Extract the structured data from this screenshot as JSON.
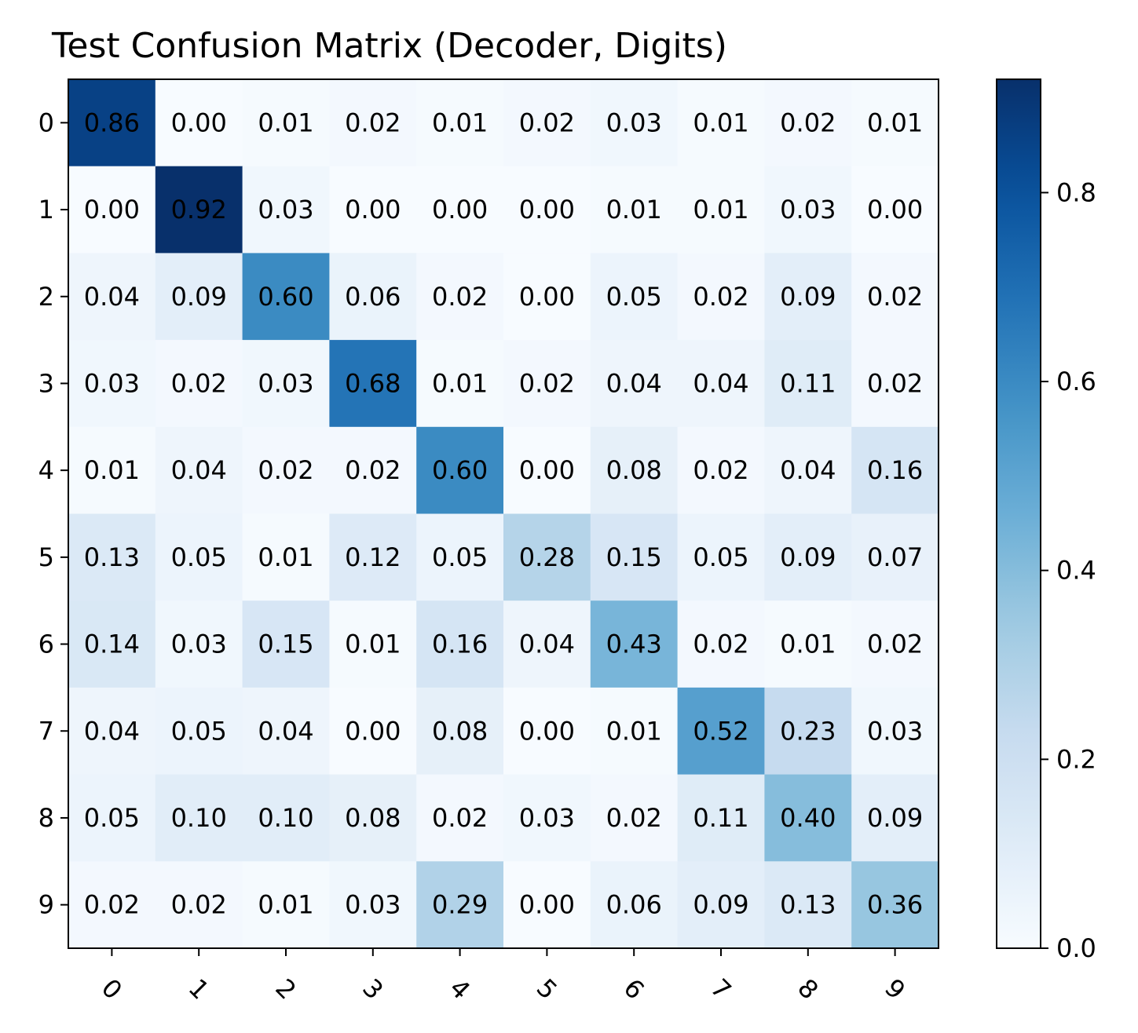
{
  "chart_data": {
    "type": "heatmap",
    "title": "Test Confusion Matrix (Decoder, Digits)",
    "xlabel": "",
    "ylabel": "",
    "x_categories": [
      "0",
      "1",
      "2",
      "3",
      "4",
      "5",
      "6",
      "7",
      "8",
      "9"
    ],
    "y_categories": [
      "0",
      "1",
      "2",
      "3",
      "4",
      "5",
      "6",
      "7",
      "8",
      "9"
    ],
    "values": [
      [
        0.86,
        0.0,
        0.01,
        0.02,
        0.01,
        0.02,
        0.03,
        0.01,
        0.02,
        0.01
      ],
      [
        0.0,
        0.92,
        0.03,
        0.0,
        0.0,
        0.0,
        0.01,
        0.01,
        0.03,
        0.0
      ],
      [
        0.04,
        0.09,
        0.6,
        0.06,
        0.02,
        0.0,
        0.05,
        0.02,
        0.09,
        0.02
      ],
      [
        0.03,
        0.02,
        0.03,
        0.68,
        0.01,
        0.02,
        0.04,
        0.04,
        0.11,
        0.02
      ],
      [
        0.01,
        0.04,
        0.02,
        0.02,
        0.6,
        0.0,
        0.08,
        0.02,
        0.04,
        0.16
      ],
      [
        0.13,
        0.05,
        0.01,
        0.12,
        0.05,
        0.28,
        0.15,
        0.05,
        0.09,
        0.07
      ],
      [
        0.14,
        0.03,
        0.15,
        0.01,
        0.16,
        0.04,
        0.43,
        0.02,
        0.01,
        0.02
      ],
      [
        0.04,
        0.05,
        0.04,
        0.0,
        0.08,
        0.0,
        0.01,
        0.52,
        0.23,
        0.03
      ],
      [
        0.05,
        0.1,
        0.1,
        0.08,
        0.02,
        0.03,
        0.02,
        0.11,
        0.4,
        0.09
      ],
      [
        0.02,
        0.02,
        0.01,
        0.03,
        0.29,
        0.0,
        0.06,
        0.09,
        0.13,
        0.36
      ]
    ],
    "value_format": "0.00",
    "colormap": "Blues",
    "colorbar": {
      "range": [
        0,
        0.92
      ],
      "ticks": [
        0.0,
        0.2,
        0.4,
        0.6,
        0.8
      ],
      "tick_labels": [
        "0.0",
        "0.2",
        "0.4",
        "0.6",
        "0.8"
      ],
      "position": "right"
    },
    "x_tick_rotation": 45,
    "grid": false,
    "legend": "none"
  }
}
